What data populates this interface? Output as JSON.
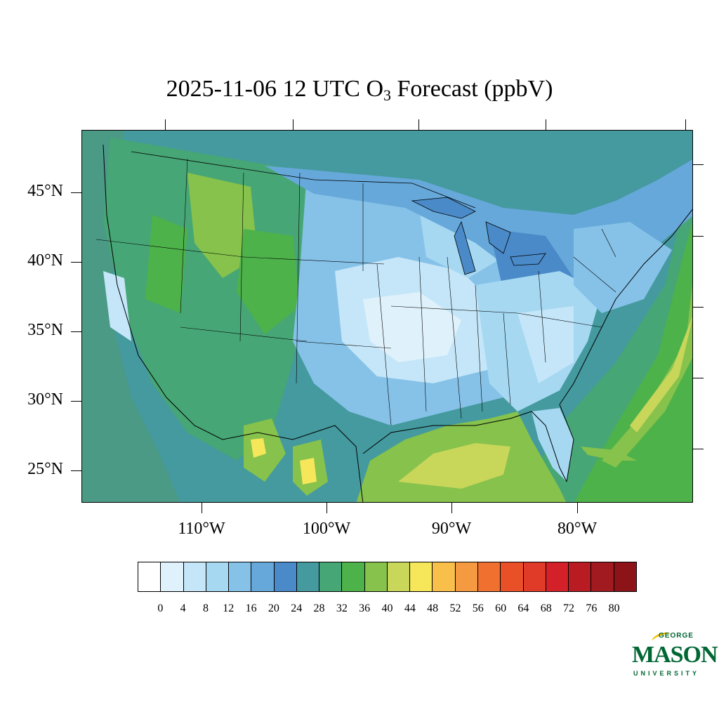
{
  "title": {
    "prefix": "2025-11-06 12 UTC O",
    "subscript": "3",
    "suffix": " Forecast (ppbV)"
  },
  "map": {
    "region": "Contiguous United States",
    "latitude_labels": [
      "45°N",
      "40°N",
      "35°N",
      "30°N",
      "25°N"
    ],
    "longitude_labels": [
      "110°W",
      "100°W",
      "90°W",
      "80°W"
    ]
  },
  "colorbar": {
    "labels": [
      "0",
      "4",
      "8",
      "12",
      "16",
      "20",
      "24",
      "28",
      "32",
      "36",
      "40",
      "44",
      "48",
      "52",
      "56",
      "60",
      "64",
      "68",
      "72",
      "76",
      "80"
    ],
    "colors": [
      "#ffffff",
      "#dff1fb",
      "#c4e6f8",
      "#a6d8f2",
      "#86c2e8",
      "#66a8da",
      "#4a8ac8",
      "#449a9e",
      "#47a675",
      "#4db24a",
      "#86c24c",
      "#c8d65a",
      "#f5e65a",
      "#f8bf4a",
      "#f59a40",
      "#f07030",
      "#ea5028",
      "#e03a28",
      "#d42028",
      "#b81c22",
      "#a01a20",
      "#8c1418"
    ]
  },
  "logo": {
    "top": "GEORGE",
    "main": "MASON",
    "bottom": "UNIVERSITY"
  }
}
